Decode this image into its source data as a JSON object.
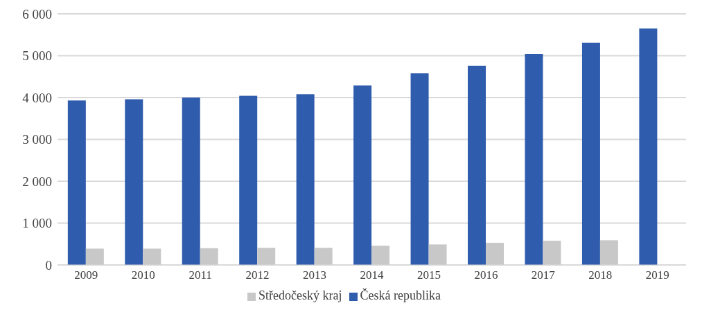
{
  "chart_data": {
    "type": "bar",
    "categories": [
      "2009",
      "2010",
      "2011",
      "2012",
      "2013",
      "2014",
      "2015",
      "2016",
      "2017",
      "2018",
      "2019"
    ],
    "series": [
      {
        "name": "Česká republika",
        "color": "#2f5cad",
        "values": [
          3930,
          3960,
          4000,
          4040,
          4080,
          4290,
          4580,
          4760,
          5040,
          5310,
          5650
        ]
      },
      {
        "name": "Středočeský kraj",
        "color": "#c8c8c8",
        "values": [
          390,
          390,
          400,
          410,
          410,
          460,
          490,
          530,
          580,
          590,
          0
        ]
      }
    ],
    "ylim": [
      0,
      6000
    ],
    "yticks": [
      {
        "value": 0,
        "label": "0"
      },
      {
        "value": 1000,
        "label": "1 000"
      },
      {
        "value": 2000,
        "label": "2 000"
      },
      {
        "value": 3000,
        "label": "3 000"
      },
      {
        "value": 4000,
        "label": "4 000"
      },
      {
        "value": 5000,
        "label": "5 000"
      },
      {
        "value": 6000,
        "label": "6 000"
      }
    ],
    "grid": "y",
    "legend": "bottom"
  }
}
